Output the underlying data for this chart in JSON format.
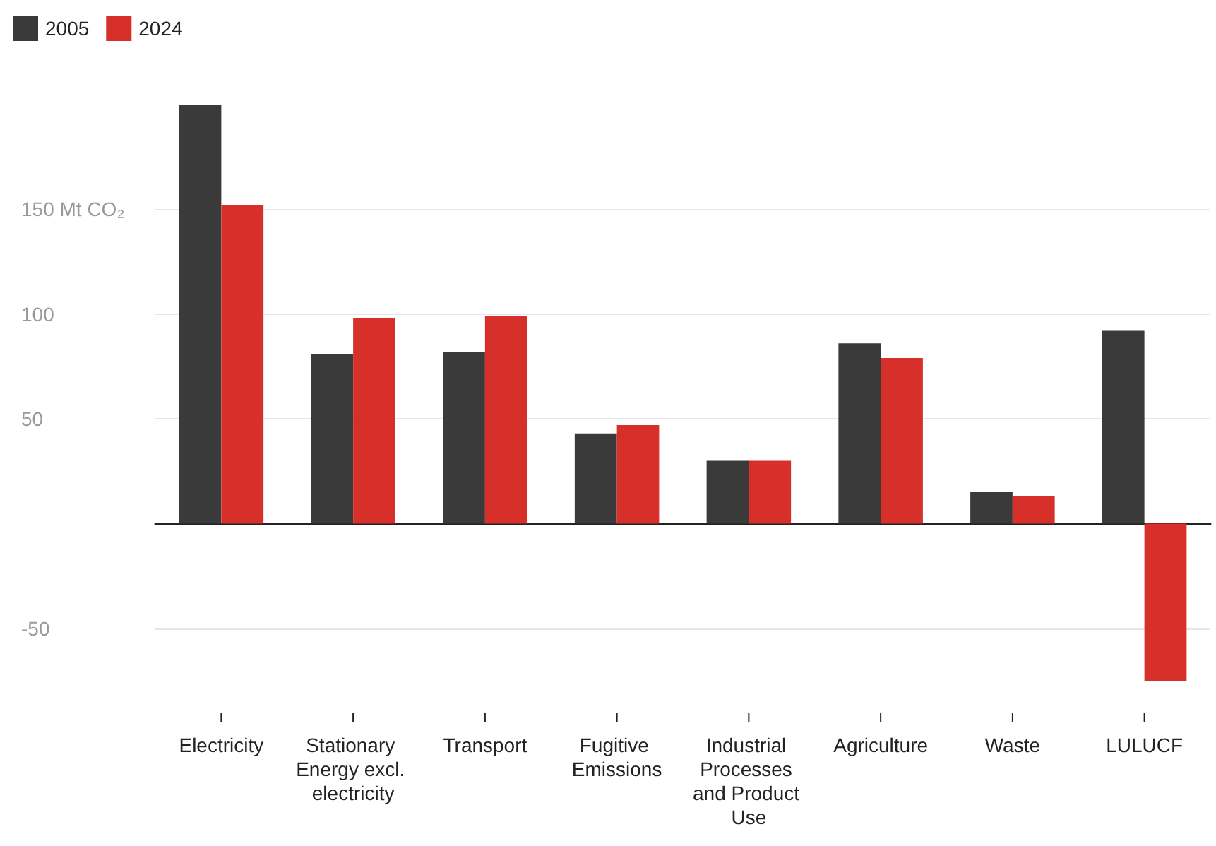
{
  "chart_data": {
    "type": "bar",
    "categories": [
      "Electricity",
      "Stationary Energy excl. electricity",
      "Transport",
      "Fugitive Emissions",
      "Industrial Processes and Product Use",
      "Agriculture",
      "Waste",
      "LULUCF"
    ],
    "series": [
      {
        "name": "2005",
        "color": "#3a3a3a",
        "values": [
          200,
          81,
          82,
          43,
          30,
          86,
          15,
          92
        ]
      },
      {
        "name": "2024",
        "color": "#d7302a",
        "values": [
          152,
          98,
          99,
          47,
          30,
          79,
          13,
          -75
        ]
      }
    ],
    "yticks": [
      -50,
      {
        "value": 0,
        "label": null
      },
      50,
      100,
      {
        "value": 150,
        "label": "150 Mt CO₂"
      }
    ],
    "ylim": [
      -75,
      200
    ],
    "grid": "y",
    "legend": "top left"
  }
}
